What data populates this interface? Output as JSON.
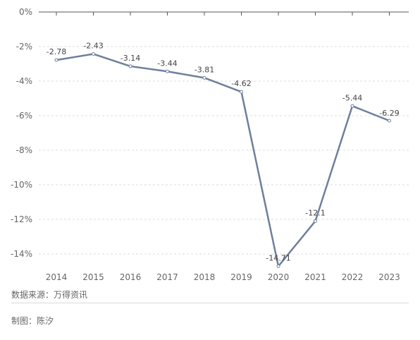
{
  "chart_data": {
    "type": "line",
    "x": [
      "2014",
      "2015",
      "2016",
      "2017",
      "2018",
      "2019",
      "2020",
      "2021",
      "2022",
      "2023"
    ],
    "values": [
      -2.78,
      -2.43,
      -3.14,
      -3.44,
      -3.81,
      -4.62,
      -14.71,
      -12.1,
      -5.44,
      -6.29
    ],
    "value_labels": [
      "-2.78",
      "-2.43",
      "-3.14",
      "-3.44",
      "-3.81",
      "-4.62",
      "-14.71",
      "-12.1",
      "-5.44",
      "-6.29"
    ],
    "y_ticks": [
      0,
      -2,
      -4,
      -6,
      -8,
      -10,
      -12,
      -14
    ],
    "y_tick_labels": [
      "0%",
      "-2%",
      "-4%",
      "-6%",
      "-8%",
      "-10%",
      "-12%",
      "-14%"
    ],
    "ylim": [
      -14.8,
      0
    ],
    "grid": "horizontal dashed",
    "line_color": "#6f7f9c",
    "title": "",
    "xlabel": "",
    "ylabel": ""
  },
  "footer": {
    "source": "数据来源：万得资讯",
    "credit": "制图：陈汐"
  }
}
